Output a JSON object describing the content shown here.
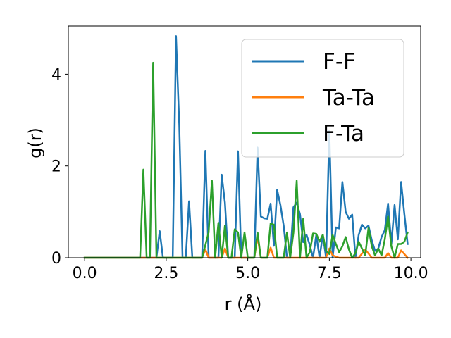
{
  "chart_data": {
    "type": "line",
    "xlabel": "r (Å)",
    "ylabel": "g(r)",
    "xlim": [
      -0.5,
      10.3
    ],
    "ylim": [
      0,
      5.05
    ],
    "xticks": [
      0.0,
      2.5,
      5.0,
      7.5,
      10.0
    ],
    "xtick_labels": [
      "0.0",
      "2.5",
      "5.0",
      "7.5",
      "10.0"
    ],
    "yticks": [
      0,
      2,
      4
    ],
    "ytick_labels": [
      "0",
      "2",
      "4"
    ],
    "grid": false,
    "legend_position": "top-right",
    "series": [
      {
        "name": "F-F",
        "color": "#1f77b4",
        "x": [
          0,
          0.5,
          1.0,
          1.5,
          2.0,
          2.1,
          2.2,
          2.3,
          2.4,
          2.5,
          2.6,
          2.7,
          2.8,
          2.9,
          3.0,
          3.1,
          3.2,
          3.3,
          3.4,
          3.5,
          3.6,
          3.7,
          3.8,
          3.9,
          4.0,
          4.1,
          4.2,
          4.3,
          4.4,
          4.5,
          4.6,
          4.7,
          4.8,
          4.9,
          5.0,
          5.1,
          5.2,
          5.3,
          5.4,
          5.5,
          5.6,
          5.7,
          5.8,
          5.9,
          6.0,
          6.1,
          6.2,
          6.3,
          6.4,
          6.5,
          6.6,
          6.7,
          6.8,
          6.9,
          7.0,
          7.1,
          7.2,
          7.3,
          7.4,
          7.5,
          7.6,
          7.7,
          7.8,
          7.9,
          8.0,
          8.1,
          8.2,
          8.3,
          8.4,
          8.5,
          8.6,
          8.7,
          8.8,
          8.9,
          9.0,
          9.1,
          9.2,
          9.3,
          9.4,
          9.5,
          9.6,
          9.7,
          9.8,
          9.9
        ],
        "values": [
          0,
          0,
          0,
          0,
          0,
          0,
          0,
          0.58,
          0,
          0,
          0,
          0,
          4.83,
          2.9,
          0,
          0,
          1.23,
          0,
          0,
          0,
          0,
          2.33,
          0,
          0,
          0,
          0,
          1.81,
          1.2,
          0,
          0,
          0,
          2.32,
          0,
          0,
          0,
          0,
          0,
          2.4,
          0.9,
          0.86,
          0.85,
          1.18,
          0.26,
          1.48,
          1.15,
          0.7,
          0,
          0,
          1.1,
          1.2,
          0.95,
          0.34,
          0.5,
          0.28,
          0,
          0.5,
          0,
          0.5,
          0,
          2.77,
          0,
          0.66,
          0.64,
          1.65,
          1.0,
          0.85,
          0.94,
          0,
          0.5,
          0.72,
          0.64,
          0.7,
          0.38,
          0.15,
          0.2,
          0.45,
          0.6,
          1.18,
          0.3,
          1.15,
          0.4,
          1.65,
          0.95,
          0.3
        ]
      },
      {
        "name": "Ta-Ta",
        "color": "#ff7f0e",
        "x": [
          0,
          1.0,
          2.0,
          3.0,
          3.6,
          3.7,
          3.8,
          4.0,
          4.2,
          4.3,
          4.4,
          5.0,
          5.2,
          5.3,
          5.4,
          5.6,
          5.7,
          5.8,
          6.0,
          6.8,
          7.0,
          7.4,
          7.5,
          7.6,
          7.8,
          8.0,
          8.4,
          8.6,
          8.8,
          9.2,
          9.3,
          9.4,
          9.6,
          9.7,
          9.8,
          9.9
        ],
        "values": [
          0,
          0,
          0,
          0,
          0,
          0.18,
          0,
          0,
          0,
          0.2,
          0,
          0,
          0,
          0.46,
          0,
          0,
          0.22,
          0,
          0,
          0,
          0,
          0,
          0.2,
          0.05,
          0,
          0,
          0,
          0.18,
          0,
          0,
          0.1,
          0,
          0,
          0.16,
          0.08,
          0
        ]
      },
      {
        "name": "F-Ta",
        "color": "#2ca02c",
        "x": [
          0,
          0.5,
          1.0,
          1.5,
          1.7,
          1.8,
          1.9,
          2.0,
          2.1,
          2.2,
          2.3,
          2.6,
          3.0,
          3.6,
          3.8,
          3.9,
          4.0,
          4.1,
          4.2,
          4.3,
          4.4,
          4.5,
          4.6,
          4.7,
          4.8,
          4.9,
          5.0,
          5.1,
          5.2,
          5.3,
          5.4,
          5.5,
          5.6,
          5.7,
          5.8,
          5.9,
          6.0,
          6.1,
          6.2,
          6.3,
          6.4,
          6.5,
          6.6,
          6.7,
          6.8,
          6.9,
          7.0,
          7.1,
          7.2,
          7.3,
          7.4,
          7.5,
          7.6,
          7.7,
          7.8,
          7.9,
          8.0,
          8.1,
          8.2,
          8.3,
          8.4,
          8.5,
          8.6,
          8.7,
          8.8,
          8.9,
          9.0,
          9.1,
          9.2,
          9.3,
          9.4,
          9.5,
          9.6,
          9.7,
          9.8,
          9.9
        ],
        "values": [
          0,
          0,
          0,
          0,
          0,
          1.92,
          0,
          0,
          4.25,
          0,
          0,
          0,
          0,
          0,
          0.55,
          1.68,
          0,
          0.76,
          0,
          0.7,
          0,
          0,
          0.62,
          0.55,
          0,
          0.55,
          0,
          0,
          0,
          0.55,
          0,
          0,
          0,
          0.75,
          0.72,
          0,
          0,
          0,
          0.55,
          0,
          0.55,
          1.68,
          0,
          0.85,
          0,
          0.12,
          0.53,
          0.52,
          0.35,
          0.5,
          0.15,
          0.08,
          0.5,
          0.3,
          0.12,
          0.25,
          0.45,
          0.18,
          0,
          0.1,
          0.35,
          0.2,
          0.05,
          0.65,
          0.25,
          0.05,
          0.2,
          0.05,
          0.4,
          0.9,
          0.25,
          0,
          0.3,
          0.3,
          0.35,
          0.55
        ]
      }
    ]
  }
}
